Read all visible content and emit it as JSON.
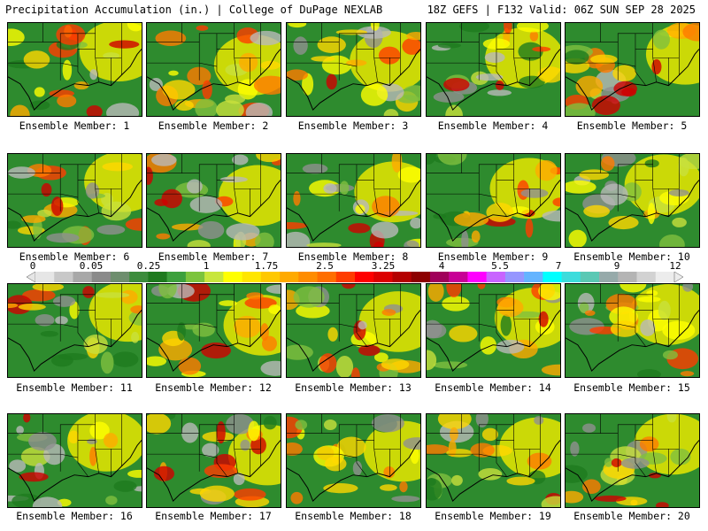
{
  "header": {
    "left_title": "Precipitation Accumulation (in.) | College of DuPage NEXLAB",
    "right_title": "18Z GEFS | F132 Valid: 06Z SUN SEP 28 2025"
  },
  "colorbar": {
    "tick_labels": [
      "0",
      "0.05",
      "0.25",
      "1",
      "1.75",
      "2.5",
      "3.25",
      "4",
      "5.5",
      "7",
      "9",
      "12"
    ],
    "colors": [
      "#e6e6e6",
      "#c8c8c8",
      "#a8a8a8",
      "#8a8a8a",
      "#6e8e6e",
      "#3c8c3c",
      "#1e7a1e",
      "#3ca03c",
      "#7cc43c",
      "#c8e63c",
      "#ffff00",
      "#ffe600",
      "#ffc800",
      "#ffaa00",
      "#ff8c00",
      "#ff6e00",
      "#ff3c00",
      "#ff0000",
      "#dc0000",
      "#b40000",
      "#8c0000",
      "#a0005a",
      "#c80096",
      "#ff00ff",
      "#c864ff",
      "#9696ff",
      "#64b4ff",
      "#00ffff",
      "#3cdcdc",
      "#5ac8b4",
      "#96aaaa",
      "#b4b4b4",
      "#d2d2d2",
      "#ececec"
    ]
  },
  "members": [
    {
      "label": "Ensemble Member: 1"
    },
    {
      "label": "Ensemble Member: 2"
    },
    {
      "label": "Ensemble Member: 3"
    },
    {
      "label": "Ensemble Member: 4"
    },
    {
      "label": "Ensemble Member: 5"
    },
    {
      "label": "Ensemble Member: 6"
    },
    {
      "label": "Ensemble Member: 7"
    },
    {
      "label": "Ensemble Member: 8"
    },
    {
      "label": "Ensemble Member: 9"
    },
    {
      "label": "Ensemble Member: 10"
    },
    {
      "label": "Ensemble Member: 11"
    },
    {
      "label": "Ensemble Member: 12"
    },
    {
      "label": "Ensemble Member: 13"
    },
    {
      "label": "Ensemble Member: 14"
    },
    {
      "label": "Ensemble Member: 15"
    },
    {
      "label": "Ensemble Member: 16"
    },
    {
      "label": "Ensemble Member: 17"
    },
    {
      "label": "Ensemble Member: 18"
    },
    {
      "label": "Ensemble Member: 19"
    },
    {
      "label": "Ensemble Member: 20"
    }
  ]
}
